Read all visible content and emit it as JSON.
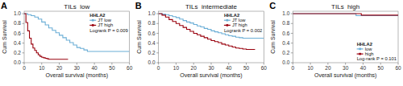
{
  "chart_data": [
    {
      "type": "step",
      "title": "TILs  low",
      "x_label": "Overall survival (months)",
      "y_label": "Cum Survival",
      "annotations": [
        "A",
        "Logrank P = 0.009"
      ],
      "legend_title": "HHLA2",
      "legend": "upper right",
      "xlim": [
        0,
        60
      ],
      "ylim": [
        0,
        1.05
      ],
      "xticks": [
        0,
        10,
        20,
        30,
        40,
        50,
        60
      ],
      "yticks": [
        {
          "value": 0.0,
          "label": "0.0"
        },
        0.2,
        0.4,
        0.6,
        0.8,
        {
          "value": 1.0,
          "label": "1.0"
        }
      ],
      "series": [
        {
          "name": "JT low",
          "color": "#6baed6",
          "x": [
            0,
            1,
            2,
            4,
            6,
            8,
            10,
            12,
            14,
            16,
            18,
            20,
            22,
            24,
            26,
            28,
            30,
            32,
            34,
            36,
            40,
            45,
            50,
            55,
            60
          ],
          "values": [
            1.0,
            1.0,
            0.98,
            0.96,
            0.93,
            0.89,
            0.83,
            0.77,
            0.71,
            0.66,
            0.61,
            0.56,
            0.51,
            0.46,
            0.41,
            0.36,
            0.31,
            0.29,
            0.26,
            0.23,
            0.23,
            0.23,
            0.23,
            0.23,
            0.23
          ]
        },
        {
          "name": "JT high",
          "color": "#99000d",
          "x": [
            0,
            1,
            2,
            3,
            4,
            5,
            6,
            7,
            8,
            9,
            10,
            11,
            12,
            13,
            14,
            16,
            18,
            20,
            25
          ],
          "values": [
            1.0,
            0.82,
            0.65,
            0.5,
            0.38,
            0.3,
            0.25,
            0.2,
            0.16,
            0.13,
            0.11,
            0.1,
            0.09,
            0.08,
            0.07,
            0.07,
            0.07,
            0.07,
            0.07
          ]
        }
      ]
    },
    {
      "type": "step",
      "title": "TILs  intermediate",
      "x_label": "Overall survival (months)",
      "y_label": "Cum Survival",
      "annotations": [
        "B",
        "Logrank P = 0.002"
      ],
      "legend_title": "HHLA2",
      "legend": "upper right",
      "xlim": [
        0,
        60
      ],
      "ylim": [
        0,
        1.05
      ],
      "xticks": [
        0,
        10,
        20,
        30,
        40,
        50,
        60
      ],
      "yticks": [
        {
          "value": 0.0,
          "label": "0.0"
        },
        0.2,
        0.4,
        0.6,
        0.8,
        {
          "value": 1.0,
          "label": "1.0"
        }
      ],
      "series": [
        {
          "name": "JT low",
          "color": "#6baed6",
          "x": [
            0,
            2,
            4,
            6,
            8,
            10,
            12,
            14,
            16,
            18,
            20,
            22,
            24,
            26,
            28,
            30,
            32,
            34,
            36,
            38,
            40,
            42,
            44,
            46,
            48,
            50,
            52,
            54,
            56,
            58,
            60
          ],
          "values": [
            1.0,
            0.99,
            0.98,
            0.96,
            0.94,
            0.92,
            0.89,
            0.86,
            0.83,
            0.81,
            0.78,
            0.75,
            0.73,
            0.7,
            0.68,
            0.65,
            0.63,
            0.61,
            0.59,
            0.57,
            0.55,
            0.54,
            0.52,
            0.51,
            0.5,
            0.5,
            0.5,
            0.5,
            0.5,
            0.5,
            0.5
          ]
        },
        {
          "name": "JT high",
          "color": "#99000d",
          "x": [
            0,
            2,
            4,
            6,
            8,
            10,
            12,
            14,
            16,
            18,
            20,
            22,
            24,
            26,
            28,
            30,
            32,
            34,
            36,
            38,
            40,
            42,
            44,
            46,
            48,
            50,
            52,
            54,
            55
          ],
          "values": [
            1.0,
            0.97,
            0.93,
            0.88,
            0.84,
            0.8,
            0.76,
            0.72,
            0.68,
            0.64,
            0.6,
            0.57,
            0.54,
            0.51,
            0.48,
            0.45,
            0.43,
            0.41,
            0.38,
            0.36,
            0.34,
            0.32,
            0.3,
            0.29,
            0.28,
            0.27,
            0.27,
            0.27,
            0.27
          ]
        }
      ]
    },
    {
      "type": "step",
      "title": "TILs  high",
      "x_label": "Overall survival (months)",
      "y_label": "Cum Survival",
      "annotations": [
        "C",
        "Log-rank P = 0.101"
      ],
      "legend_title": "HHLA2",
      "legend": "lower right",
      "xlim": [
        0,
        60
      ],
      "ylim": [
        0,
        1.05
      ],
      "xticks": [
        0,
        10,
        20,
        30,
        40,
        50,
        60
      ],
      "yticks": [
        {
          "value": 0.0,
          "label": "0.0"
        },
        0.2,
        0.4,
        0.6,
        0.8,
        {
          "value": 1.0,
          "label": "1.0"
        }
      ],
      "series": [
        {
          "name": "low",
          "color": "#6baed6",
          "x": [
            0,
            35,
            36,
            60
          ],
          "values": [
            1.0,
            1.0,
            0.96,
            0.96
          ]
        },
        {
          "name": "high",
          "color": "#99000d",
          "x": [
            0,
            38,
            39,
            60
          ],
          "values": [
            1.0,
            1.0,
            0.97,
            0.97
          ]
        }
      ]
    }
  ]
}
